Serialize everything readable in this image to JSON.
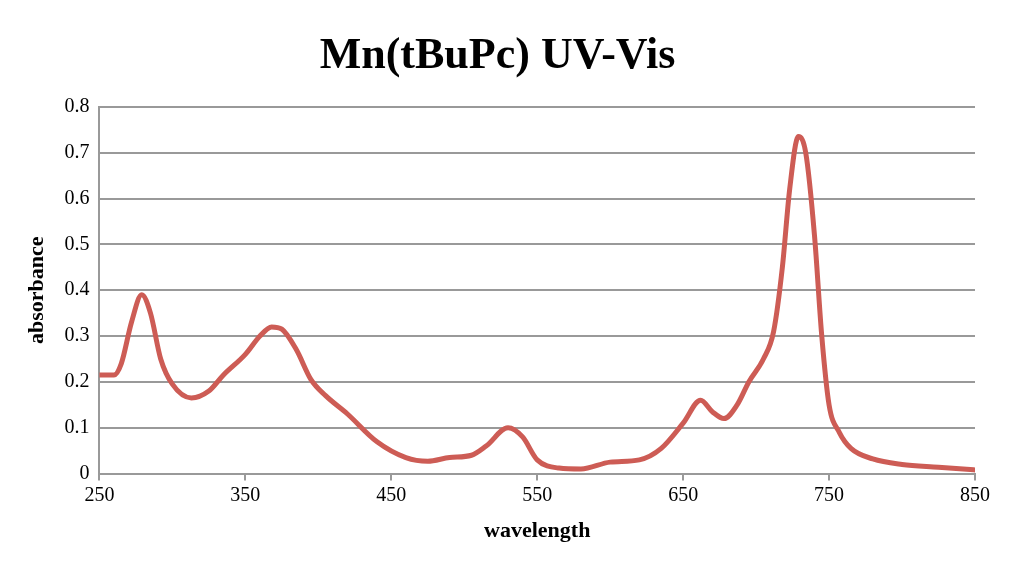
{
  "chart_data": {
    "type": "line",
    "title": "Mn(tBuPc) UV-Vis",
    "xlabel": "wavelength",
    "ylabel": "absorbance",
    "x": [
      250,
      260,
      265,
      272,
      279,
      285,
      292,
      300,
      313,
      325,
      335,
      350,
      360,
      368,
      375,
      385,
      395,
      405,
      420,
      440,
      460,
      475,
      490,
      505,
      515,
      530,
      540,
      550,
      565,
      580,
      600,
      620,
      635,
      650,
      662,
      670,
      678,
      687,
      695,
      705,
      712,
      718,
      723,
      729,
      734,
      740,
      745,
      750,
      757,
      765,
      780,
      800,
      825,
      850
    ],
    "series": [
      {
        "color": "#cd5c55",
        "values": [
          0.215,
          0.215,
          0.24,
          0.33,
          0.39,
          0.35,
          0.25,
          0.195,
          0.165,
          0.18,
          0.215,
          0.26,
          0.3,
          0.32,
          0.315,
          0.27,
          0.205,
          0.17,
          0.13,
          0.07,
          0.035,
          0.027,
          0.035,
          0.04,
          0.06,
          0.1,
          0.08,
          0.03,
          0.012,
          0.01,
          0.025,
          0.03,
          0.055,
          0.11,
          0.16,
          0.135,
          0.12,
          0.15,
          0.2,
          0.25,
          0.31,
          0.45,
          0.62,
          0.735,
          0.7,
          0.52,
          0.3,
          0.15,
          0.09,
          0.055,
          0.032,
          0.02,
          0.014,
          0.008
        ]
      }
    ],
    "xlim": [
      250,
      850
    ],
    "xticks": [
      250,
      350,
      450,
      550,
      650,
      750,
      850
    ],
    "ylim": [
      0,
      0.8
    ],
    "yticks": [
      0,
      0.1,
      0.2,
      0.3,
      0.4,
      0.5,
      0.6,
      0.7,
      0.8
    ],
    "grid": "y",
    "legend": false,
    "marker": "none",
    "line_style": "solid"
  }
}
